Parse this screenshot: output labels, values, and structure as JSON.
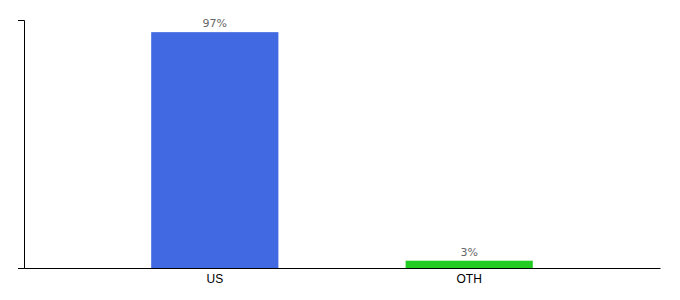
{
  "chart_data": {
    "type": "bar",
    "categories": [
      "US",
      "OTH"
    ],
    "values": [
      97,
      3
    ],
    "colors": [
      "#4169e1",
      "#22cc22"
    ],
    "value_labels": [
      "97%",
      "3%"
    ],
    "data_labels": true,
    "ylim": [
      0,
      102
    ],
    "tick_labels": "x"
  }
}
